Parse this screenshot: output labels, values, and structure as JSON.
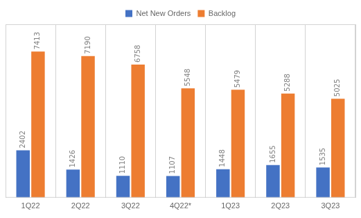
{
  "chart_data": {
    "type": "bar",
    "categories": [
      "1Q22",
      "2Q22",
      "3Q22",
      "4Q22*",
      "1Q23",
      "2Q23",
      "3Q23"
    ],
    "series": [
      {
        "name": "Net New Orders",
        "color": "#4472C4",
        "values": [
          2402,
          1426,
          1110,
          1107,
          1448,
          1655,
          1535
        ]
      },
      {
        "name": "Backlog",
        "color": "#ED7D31",
        "values": [
          7413,
          7190,
          6758,
          5548,
          5479,
          5288,
          5025
        ]
      }
    ],
    "ylim": [
      0,
      8800
    ],
    "grid": "x",
    "legend": "top",
    "data_labels": true,
    "tick_labels": "x"
  }
}
